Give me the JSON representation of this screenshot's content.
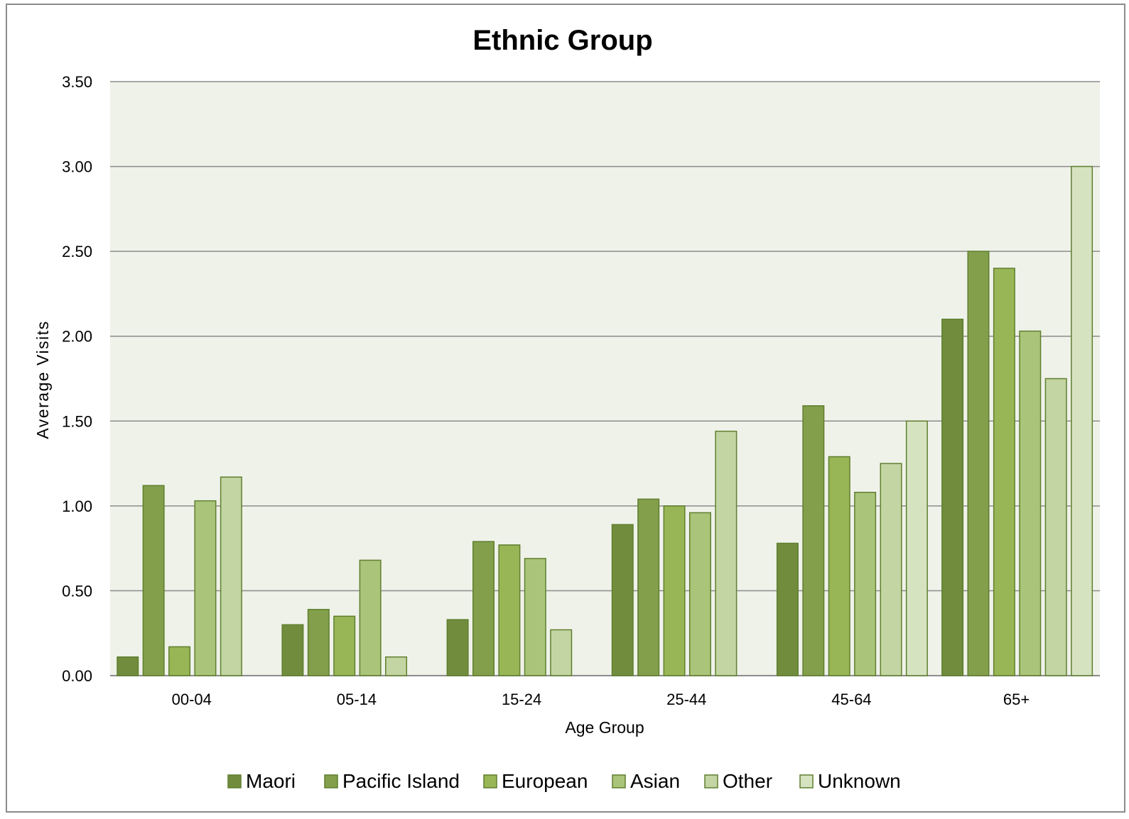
{
  "colors": {
    "plot_background": "#eff2e9",
    "gridline": "#8c8c8c",
    "bar_stroke": "#5f7f2f",
    "series": [
      "#718c3d",
      "#839f4b",
      "#98b655",
      "#aac57a",
      "#c3d5a2",
      "#d6e3c1"
    ]
  },
  "chart_data": {
    "type": "bar",
    "title": "Ethnic Group",
    "xlabel": "Age Group",
    "ylabel": "Average Visits",
    "ylim": [
      0,
      3.5
    ],
    "yticks": [
      "0.00",
      "0.50",
      "1.00",
      "1.50",
      "2.00",
      "2.50",
      "3.00",
      "3.50"
    ],
    "ytick_values": [
      0,
      0.5,
      1.0,
      1.5,
      2.0,
      2.5,
      3.0,
      3.5
    ],
    "grid": true,
    "legend_position": "bottom",
    "categories": [
      "00-04",
      "05-14",
      "15-24",
      "25-44",
      "45-64",
      "65+"
    ],
    "series": [
      {
        "name": "Maori",
        "values": [
          0.11,
          0.3,
          0.33,
          0.89,
          0.78,
          2.1
        ]
      },
      {
        "name": "Pacific Island",
        "values": [
          1.12,
          0.39,
          0.79,
          1.04,
          1.59,
          2.5
        ]
      },
      {
        "name": "European",
        "values": [
          0.17,
          0.35,
          0.77,
          1.0,
          1.29,
          2.4
        ]
      },
      {
        "name": "Asian",
        "values": [
          1.03,
          0.68,
          0.69,
          0.96,
          1.08,
          2.03
        ]
      },
      {
        "name": "Other",
        "values": [
          1.17,
          0.11,
          0.27,
          1.44,
          1.25,
          1.75
        ]
      },
      {
        "name": "Unknown",
        "values": [
          null,
          null,
          null,
          null,
          1.5,
          3.0
        ]
      }
    ]
  }
}
